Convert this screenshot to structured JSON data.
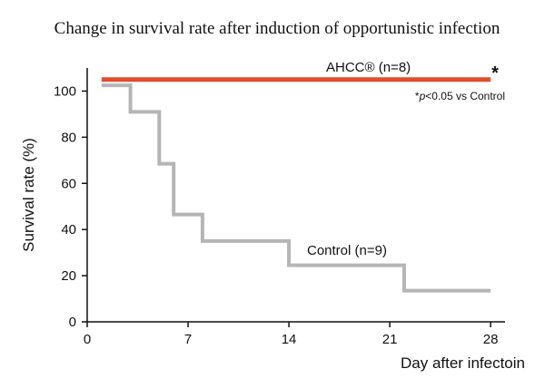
{
  "chart_data": {
    "type": "line",
    "title": "Change in survival rate after induction of opportunistic infection",
    "xlabel": "Day after infectoin",
    "ylabel": "Survival rate (%)",
    "xlim": [
      0,
      29
    ],
    "ylim": [
      0,
      110
    ],
    "xticks": [
      0,
      7,
      14,
      21,
      28
    ],
    "yticks": [
      0,
      20,
      40,
      60,
      80,
      100
    ],
    "series": [
      {
        "name": "AHCC® (n=8)",
        "color": "#e04e2a",
        "step": true,
        "x": [
          1,
          28
        ],
        "y": [
          105,
          105
        ]
      },
      {
        "name": "Control (n=9)",
        "color": "#b5b5b5",
        "step": true,
        "x": [
          1,
          3,
          5,
          6,
          8,
          14,
          22,
          28
        ],
        "y": [
          102.5,
          91,
          68.5,
          46.5,
          35,
          24.5,
          13.5,
          13.5
        ]
      }
    ],
    "annotations": {
      "significance_mark": "*",
      "footnote_p": "p",
      "footnote_rest": "<0.05 vs Control",
      "footnote_star": "*"
    }
  }
}
